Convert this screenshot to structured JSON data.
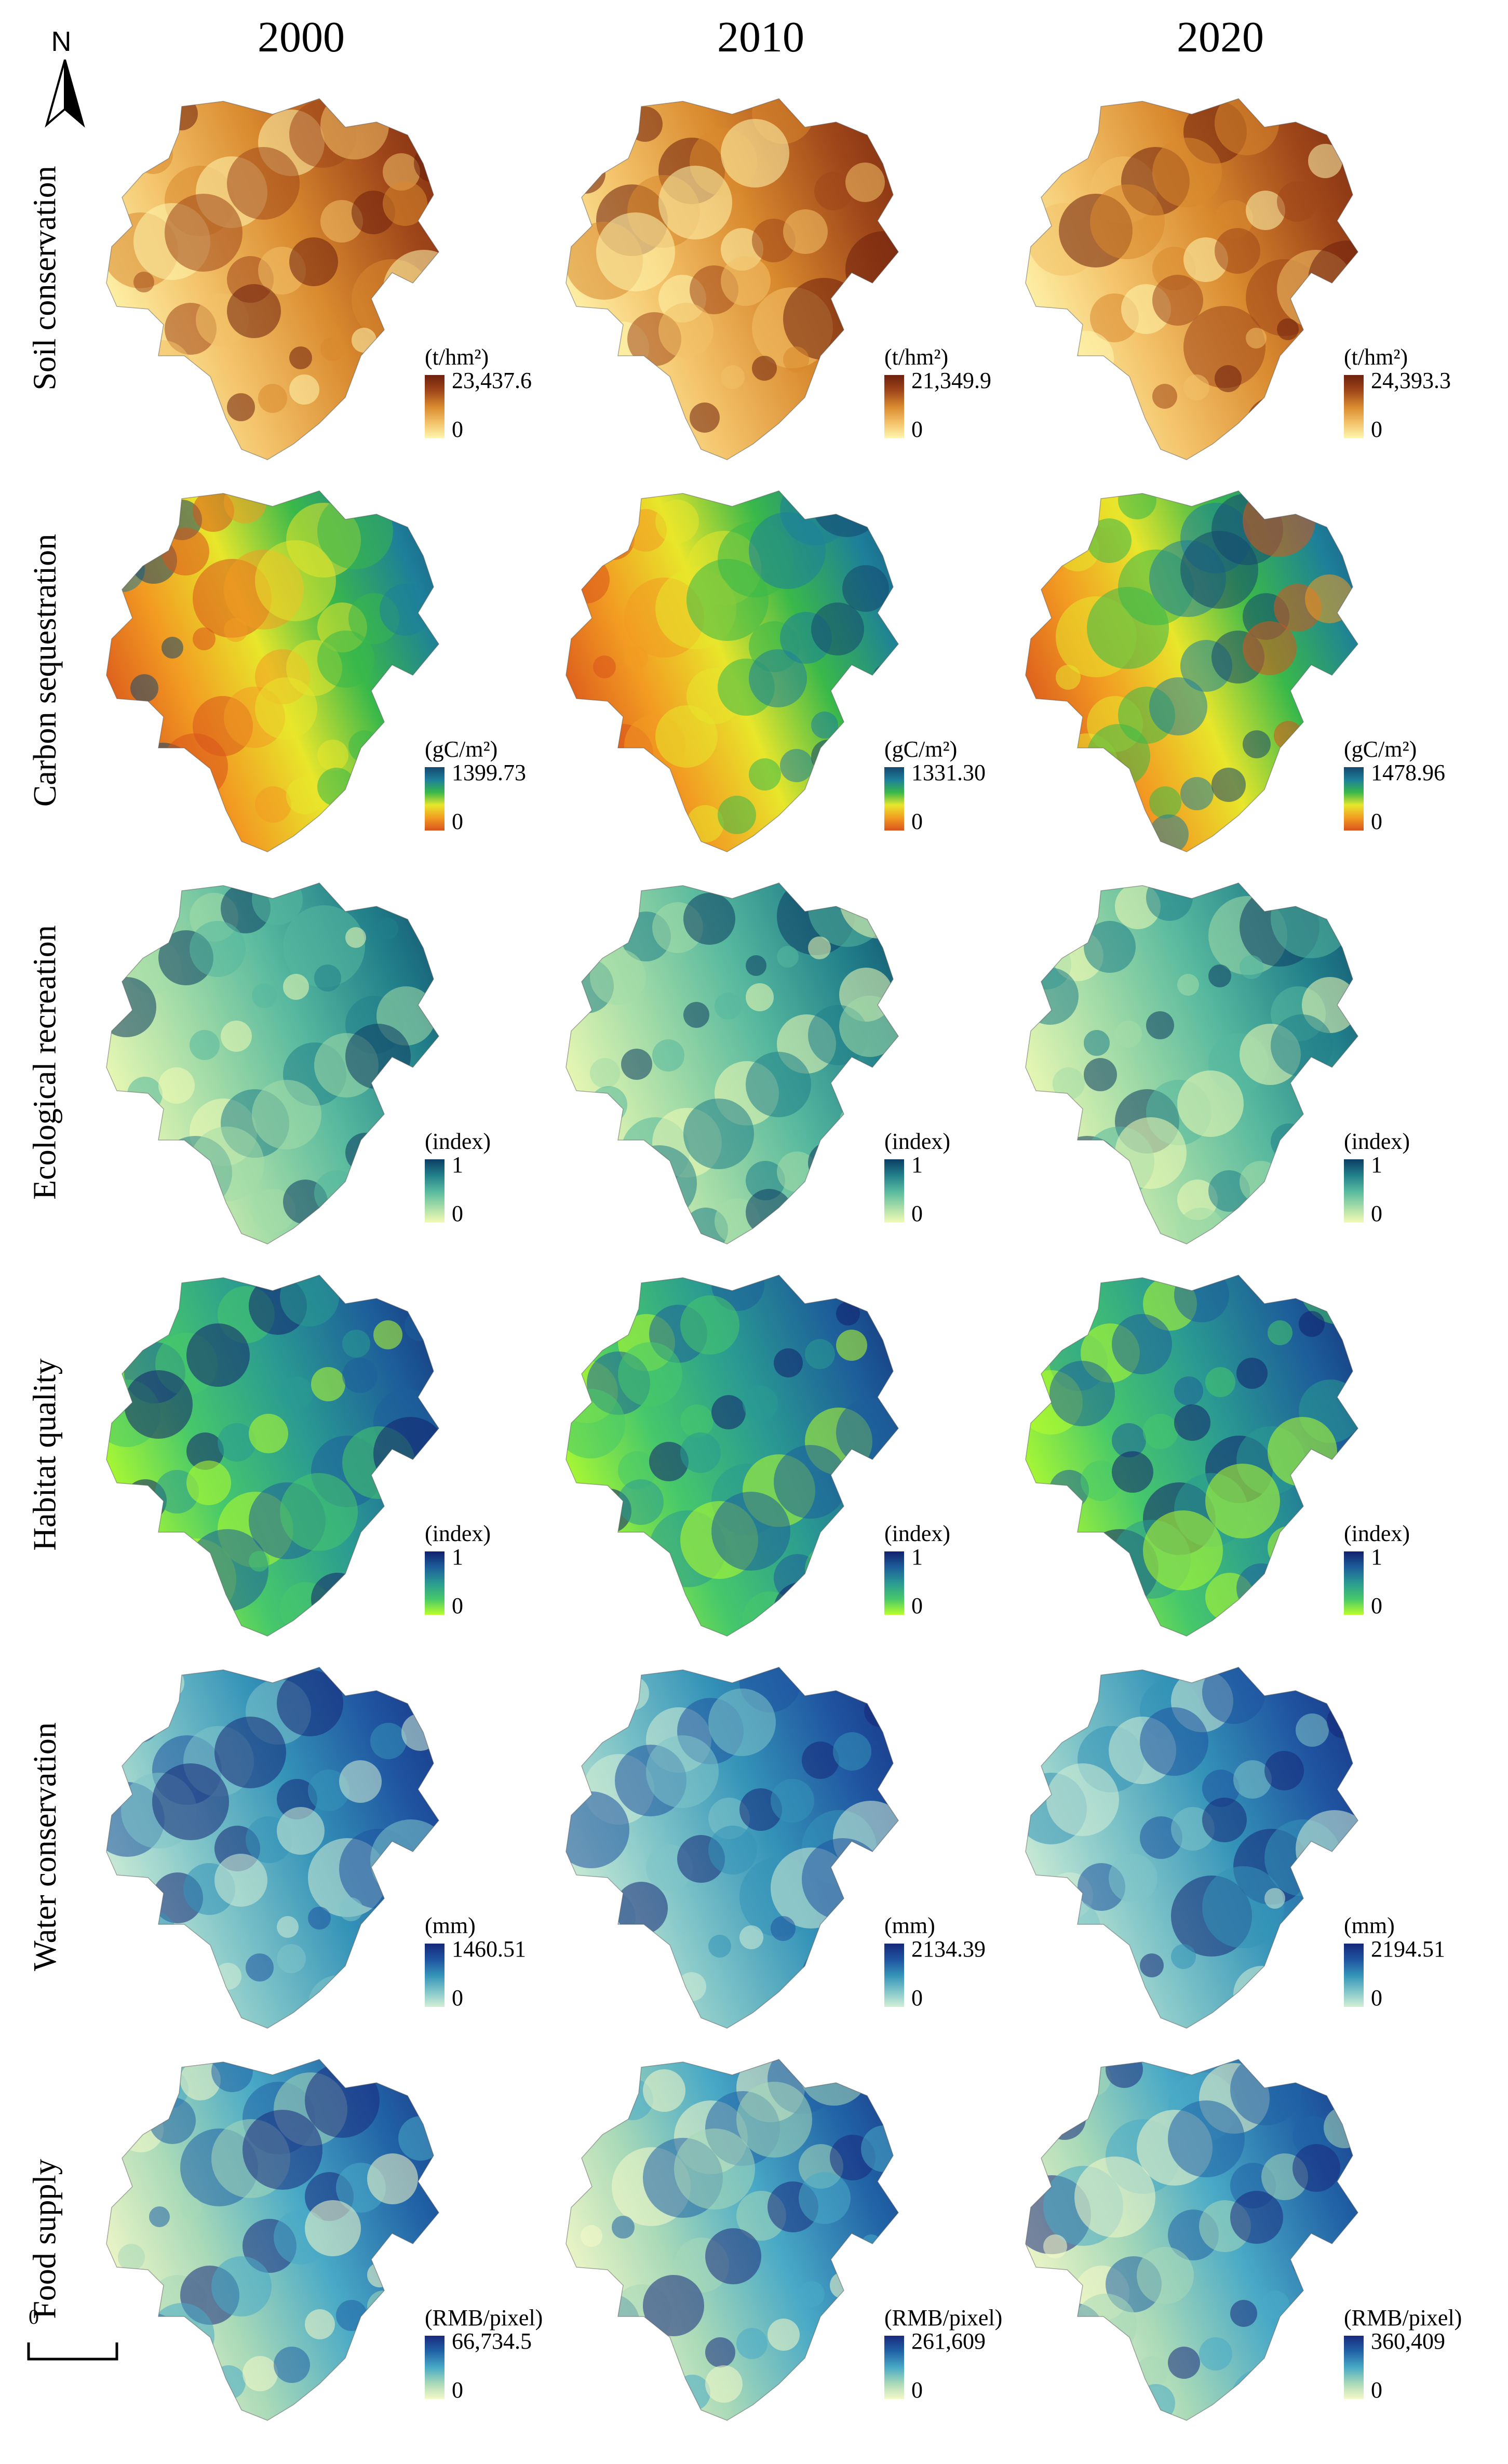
{
  "years": [
    "2000",
    "2010",
    "2020"
  ],
  "north_label": "N",
  "scale_start": "0",
  "rows": [
    {
      "label": "Soil conservation",
      "unit": "(t/hm²)",
      "colors": [
        "#fff7b0",
        "#f3c168",
        "#d9892e",
        "#a0471a",
        "#6e1f0d"
      ],
      "max": [
        "23,437.6",
        "21,349.9",
        "24,393.3"
      ],
      "min": [
        "0",
        "0",
        "0"
      ]
    },
    {
      "label": "Carbon sequestration",
      "unit": "(gC/m²)",
      "colors": [
        "#d9541c",
        "#f29b22",
        "#e8e62b",
        "#39b84a",
        "#1e7f9a",
        "#14476e"
      ],
      "max": [
        "1399.73",
        "1331.30",
        "1478.96"
      ],
      "min": [
        "0",
        "0",
        "0"
      ]
    },
    {
      "label": "Ecological recreation",
      "unit": "(index)",
      "colors": [
        "#f2fbb5",
        "#a4dca7",
        "#56b89e",
        "#217f8a",
        "#0c3d63"
      ],
      "max": [
        "1",
        "1",
        "1"
      ],
      "min": [
        "0",
        "0",
        "0"
      ]
    },
    {
      "label": "Habitat quality",
      "unit": "(index)",
      "colors": [
        "#b8ff2a",
        "#47c86a",
        "#2a9a92",
        "#1d5e9a",
        "#12216e"
      ],
      "max": [
        "1",
        "1",
        "1"
      ],
      "min": [
        "0",
        "0",
        "0"
      ]
    },
    {
      "label": "Water conservation",
      "unit": "(mm)",
      "colors": [
        "#d3efd6",
        "#7fc4c8",
        "#3493b8",
        "#1f53a0",
        "#152878"
      ],
      "max": [
        "1460.51",
        "2134.39",
        "2194.51"
      ],
      "min": [
        "0",
        "0",
        "0"
      ]
    },
    {
      "label": "Food supply",
      "unit": "(RMB/pixel)",
      "colors": [
        "#f6f9c8",
        "#a8d9b8",
        "#49a9c6",
        "#2163a6",
        "#1a2a7e"
      ],
      "max": [
        "66,734.5",
        "261,609",
        "360,409"
      ],
      "min": [
        "0",
        "0",
        "0"
      ]
    }
  ]
}
